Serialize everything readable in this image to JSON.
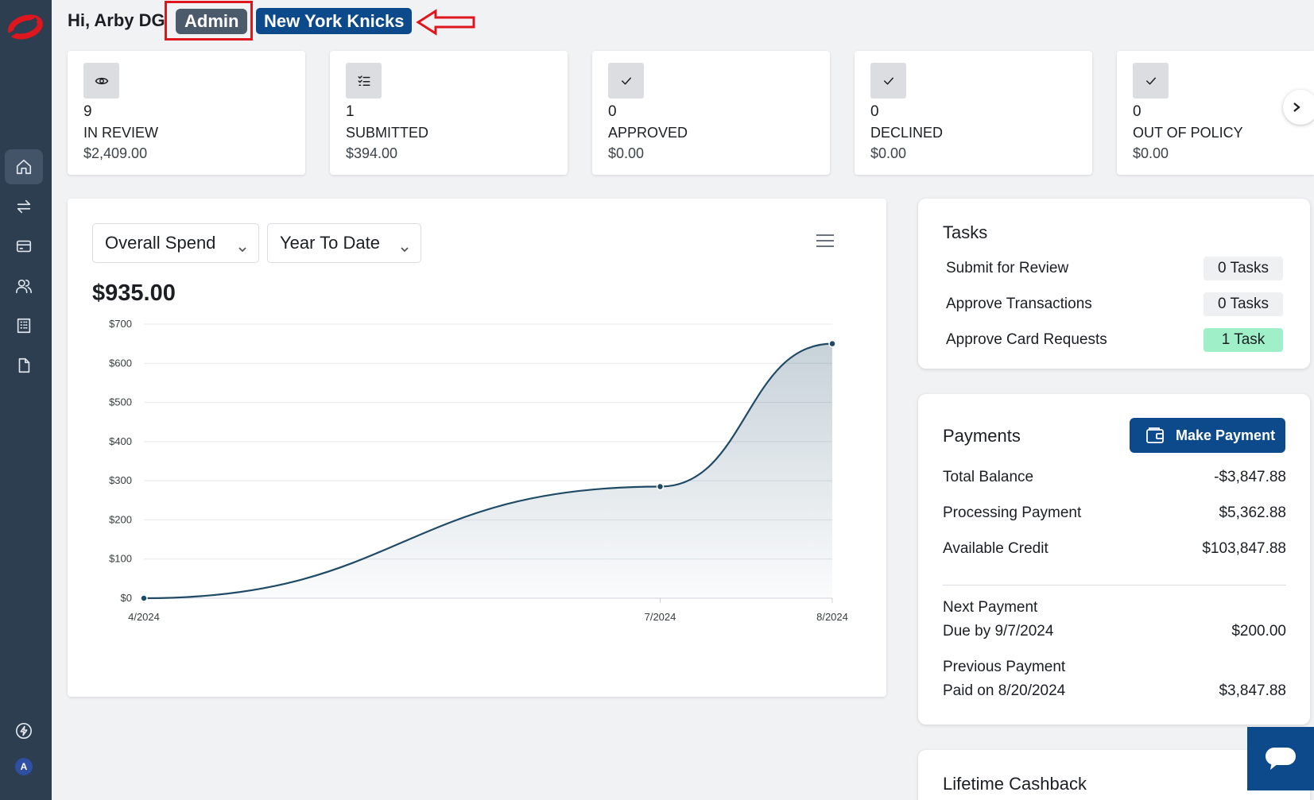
{
  "header": {
    "greeting": "Hi, Arby DG",
    "role_badge": "Admin",
    "team_badge": "New York Knicks"
  },
  "nav": {
    "items": [
      {
        "name": "home",
        "icon": "home-icon"
      },
      {
        "name": "transactions",
        "icon": "transfer-icon"
      },
      {
        "name": "cards",
        "icon": "card-icon"
      },
      {
        "name": "users",
        "icon": "users-icon"
      },
      {
        "name": "company",
        "icon": "building-icon"
      },
      {
        "name": "documents",
        "icon": "document-icon"
      }
    ],
    "bottom": {
      "icon": "lightning-icon",
      "avatar_initial": "A"
    }
  },
  "stats": [
    {
      "icon": "eye-icon",
      "count": "9",
      "label": "IN REVIEW",
      "amount": "$2,409.00"
    },
    {
      "icon": "checklist-icon",
      "count": "1",
      "label": "SUBMITTED",
      "amount": "$394.00"
    },
    {
      "icon": "check-icon",
      "count": "0",
      "label": "APPROVED",
      "amount": "$0.00"
    },
    {
      "icon": "check-icon",
      "count": "0",
      "label": "DECLINED",
      "amount": "$0.00"
    },
    {
      "icon": "check-icon",
      "count": "0",
      "label": "OUT OF POLICY",
      "amount": "$0.00"
    }
  ],
  "spend": {
    "metric_select": "Overall Spend",
    "period_select": "Year To Date",
    "total": "$935.00"
  },
  "chart_data": {
    "type": "area",
    "x": [
      "4/2024",
      "7/2024",
      "8/2024"
    ],
    "series": [
      {
        "values": [
          0,
          285,
          650
        ]
      }
    ],
    "ylim": [
      0,
      700
    ],
    "yticks": [
      "$0",
      "$100",
      "$200",
      "$300",
      "$400",
      "$500",
      "$600",
      "$700"
    ],
    "grid": true,
    "line_color": "#1f4a66"
  },
  "tasks": {
    "title": "Tasks",
    "rows": [
      {
        "label": "Submit for Review",
        "count": "0 Tasks",
        "highlight": false
      },
      {
        "label": "Approve Transactions",
        "count": "0 Tasks",
        "highlight": false
      },
      {
        "label": "Approve Card Requests",
        "count": "1 Task",
        "highlight": true
      }
    ]
  },
  "payments": {
    "title": "Payments",
    "make_payment": "Make Payment",
    "total_balance_label": "Total Balance",
    "total_balance": "-$3,847.88",
    "processing_label": "Processing Payment",
    "processing": "$5,362.88",
    "credit_label": "Available Credit",
    "credit": "$103,847.88",
    "next_label": "Next Payment",
    "next_due": "Due by 9/7/2024",
    "next_amount": "$200.00",
    "prev_label": "Previous Payment",
    "prev_paid": "Paid on 8/20/2024",
    "prev_amount": "$3,847.88"
  },
  "cashback": {
    "title": "Lifetime Cashback"
  },
  "colors": {
    "brand": "#0d4a8c",
    "sidebar": "#2d3e50",
    "annotation": "#e0161e",
    "task_highlight": "#9ff0c8"
  }
}
